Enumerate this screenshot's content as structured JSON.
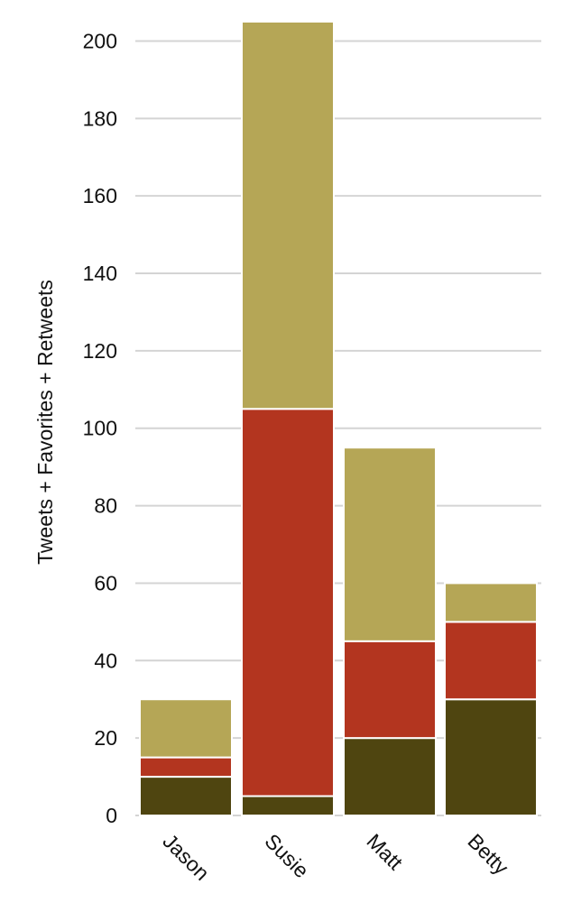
{
  "chart_data": {
    "type": "bar",
    "stacked": true,
    "categories": [
      "Jason",
      "Susie",
      "Matt",
      "Betty"
    ],
    "series": [
      {
        "values": [
          10,
          5,
          20,
          30
        ],
        "color": "#4f4510"
      },
      {
        "values": [
          5,
          100,
          25,
          20
        ],
        "color": "#b3351f"
      },
      {
        "values": [
          15,
          100,
          50,
          10
        ],
        "color": "#b5a656"
      }
    ],
    "ylabel": "Tweets + Favorites + Retweets",
    "xlabel": "",
    "title": "",
    "ylim": [
      0,
      205
    ],
    "yticks": [
      0,
      20,
      40,
      60,
      80,
      100,
      120,
      140,
      160,
      180,
      200
    ],
    "grid": true,
    "x_label_rotation_deg": 45
  }
}
